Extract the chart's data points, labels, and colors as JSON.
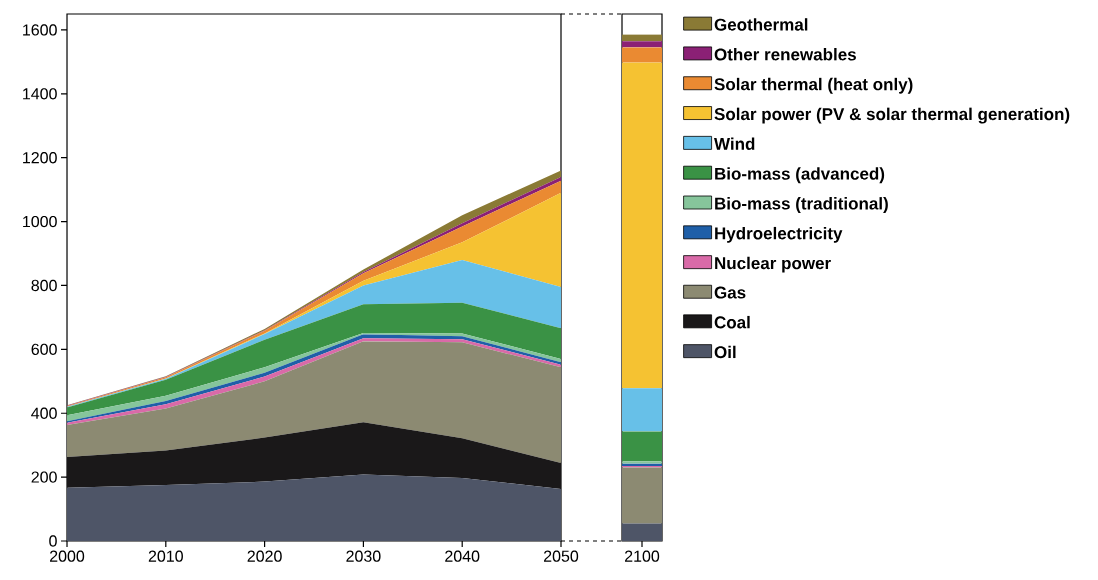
{
  "chart_data": [
    {
      "type": "area",
      "stacked": true,
      "x": [
        2000,
        2010,
        2020,
        2030,
        2040,
        2050
      ],
      "xlim": [
        2000,
        2050
      ],
      "xticks": [
        2000,
        2010,
        2020,
        2030,
        2040,
        2050
      ],
      "ylim": [
        0,
        1650
      ],
      "yticks": [
        0,
        200,
        400,
        600,
        800,
        1000,
        1200,
        1400,
        1600
      ],
      "series": [
        {
          "color": "#4e5567",
          "values": [
            167,
            175,
            186,
            208,
            197,
            163
          ]
        },
        {
          "color": "#1a1819",
          "values": [
            96,
            108,
            138,
            164,
            125,
            81
          ]
        },
        {
          "color": "#8c8a72",
          "values": [
            100,
            132,
            176,
            253,
            300,
            300
          ]
        },
        {
          "color": "#d96aa8",
          "values": [
            7,
            13,
            15,
            10,
            10,
            8
          ]
        },
        {
          "color": "#1f5fa8",
          "values": [
            5,
            10,
            12,
            12,
            9,
            8
          ]
        },
        {
          "color": "#86c59b",
          "values": [
            19,
            17,
            17,
            4,
            9,
            10
          ]
        },
        {
          "color": "#3a9245",
          "values": [
            24,
            50,
            86,
            90,
            96,
            96
          ]
        },
        {
          "color": "#67c0e8",
          "values": [
            2,
            3,
            18,
            59,
            134,
            129
          ]
        },
        {
          "color": "#f5c232",
          "values": [
            0,
            1,
            2,
            15,
            55,
            295
          ]
        },
        {
          "color": "#ea8a32",
          "values": [
            3,
            4,
            8,
            23,
            50,
            38
          ]
        },
        {
          "color": "#8b2075",
          "values": [
            1,
            1,
            2,
            4,
            10,
            12
          ]
        },
        {
          "color": "#8a7a35",
          "values": [
            1,
            2,
            4,
            8,
            25,
            20
          ]
        }
      ]
    },
    {
      "type": "bar",
      "stacked": true,
      "categories": [
        "2100"
      ],
      "ylim": [
        0,
        1650
      ],
      "tick_labels": "x",
      "legend": "right",
      "series": [
        {
          "name": "Oil",
          "color": "#4e5567",
          "values": [
            55
          ]
        },
        {
          "name": "Coal",
          "color": "#1a1819",
          "values": [
            null
          ]
        },
        {
          "name": "Gas",
          "color": "#8c8a72",
          "values": [
            175
          ]
        },
        {
          "name": "Nuclear power",
          "color": "#d96aa8",
          "values": [
            5
          ]
        },
        {
          "name": "Hydroelectricity",
          "color": "#1f5fa8",
          "values": [
            7
          ]
        },
        {
          "name": "Bio-mass (traditional)",
          "color": "#86c59b",
          "values": [
            7
          ]
        },
        {
          "name": "Bio-mass (advanced)",
          "color": "#3a9245",
          "values": [
            94
          ]
        },
        {
          "name": "Wind",
          "color": "#67c0e8",
          "values": [
            135
          ]
        },
        {
          "name": "Solar power (PV & solar thermal generation)",
          "color": "#f5c232",
          "values": [
            1020
          ]
        },
        {
          "name": "Solar thermal (heat only)",
          "color": "#ea8a32",
          "values": [
            48
          ]
        },
        {
          "name": "Other renewables",
          "color": "#8b2075",
          "values": [
            19
          ]
        },
        {
          "name": "Geothermal",
          "color": "#8a7a35",
          "values": [
            21
          ]
        }
      ]
    }
  ]
}
